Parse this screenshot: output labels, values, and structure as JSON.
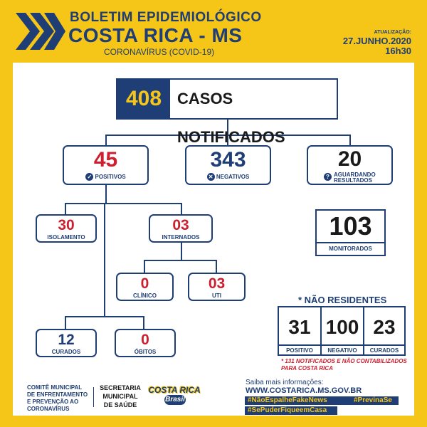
{
  "header": {
    "title_line1": "BOLETIM EPIDEMIOLÓGICO",
    "title_line2": "COSTA RICA - MS",
    "subtitle": "CORONAVÍRUS (COVID-19)",
    "update_label": "ATUALIZAÇÃO:",
    "date": "27.JUNHO.2020",
    "time": "16h30"
  },
  "cases": {
    "total": "408",
    "label": "CASOS NOTIFICADOS"
  },
  "positivos": {
    "value": "45",
    "label": "POSITIVOS"
  },
  "negativos": {
    "value": "343",
    "label": "NEGATIVOS"
  },
  "aguardando": {
    "value": "20",
    "label_line1": "AGUARDANDO",
    "label_line2": "RESULTADOS"
  },
  "isolamento": {
    "value": "30",
    "label": "ISOLAMENTO"
  },
  "internados": {
    "value": "03",
    "label": "INTERNADOS"
  },
  "clinico": {
    "value": "0",
    "label": "CLÍNICO"
  },
  "uti": {
    "value": "03",
    "label": "UTI"
  },
  "curados": {
    "value": "12",
    "label": "CURADOS"
  },
  "obitos": {
    "value": "0",
    "label": "ÓBITOS"
  },
  "monitorados": {
    "value": "103",
    "label": "MONITORADOS"
  },
  "nao_residentes": {
    "title": "* NÃO RESIDENTES",
    "items": [
      {
        "value": "31",
        "label": "POSITIVO"
      },
      {
        "value": "100",
        "label": "NEGATIVO"
      },
      {
        "value": "23",
        "label": "CURADOS"
      }
    ],
    "note_line1": "* 131 NOTIFICADOS E NÃO CONTABILIZADOS",
    "note_line2": "PARA COSTA RICA"
  },
  "footer": {
    "committee_line1": "COMITÊ MUNICIPAL",
    "committee_line2": "DE ENFRENTAMENTO",
    "committee_line3": "E PREVENÇÃO AO",
    "committee_line4": "CORONAVÍRUS",
    "secretaria_line1": "SECRETARIA",
    "secretaria_line2": "MUNICIPAL",
    "secretaria_line3": "DE SAÚDE",
    "logo_line1": "COSTA RICA",
    "logo_line2": "Brasil",
    "info_label": "Saiba mais informações:",
    "url": "WWW.COSTARICA.MS.GOV.BR",
    "hashtag1": "#NãoEspalheFakeNews",
    "hashtag2": "#PrevinaSe",
    "hashtag3": "#SePuderFiqueemCasa"
  },
  "colors": {
    "navy": "#1f3e75",
    "red": "#cc1f2f",
    "yellow": "#f5c518"
  },
  "icons": [
    "chevrons-icon",
    "check-icon",
    "x-icon",
    "question-icon"
  ]
}
